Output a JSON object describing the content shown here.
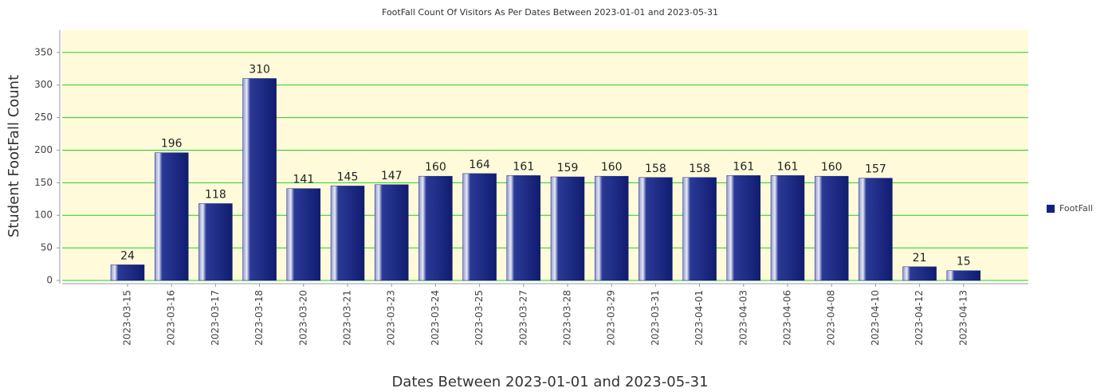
{
  "chart_data": {
    "type": "bar",
    "title": "FootFall Count Of Visitors As Per Dates Between 2023-01-01 and 2023-05-31",
    "x_label": "Dates Between 2023-01-01 and 2023-05-31",
    "y_label": "Student FootFall Count",
    "categories": [
      "2023-03-15",
      "2023-03-16",
      "2023-03-17",
      "2023-03-18",
      "2023-03-20",
      "2023-03-21",
      "2023-03-23",
      "2023-03-24",
      "2023-03-25",
      "2023-03-27",
      "2023-03-28",
      "2023-03-29",
      "2023-03-31",
      "2023-04-01",
      "2023-04-03",
      "2023-04-06",
      "2023-04-08",
      "2023-04-10",
      "2023-04-12",
      "2023-04-13"
    ],
    "series": [
      {
        "name": "FootFall",
        "color": "#14217f",
        "values": [
          24,
          196,
          118,
          310,
          141,
          145,
          147,
          160,
          164,
          161,
          159,
          160,
          158,
          158,
          161,
          161,
          160,
          157,
          21,
          15
        ]
      }
    ],
    "ylim": [
      0,
      384
    ],
    "yticks": [
      0,
      50,
      100,
      150,
      200,
      250,
      300,
      350
    ],
    "grid": true,
    "legend": "right"
  }
}
